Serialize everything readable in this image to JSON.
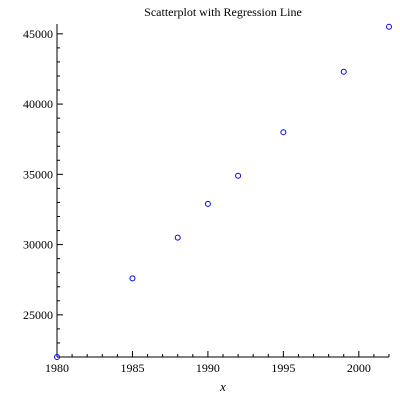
{
  "chart_data": {
    "type": "scatter",
    "title": "Scatterplot with Regression Line",
    "xlabel": "x",
    "ylabel": "",
    "xlim": [
      1980,
      2002
    ],
    "ylim": [
      22000,
      45700
    ],
    "xticks": [
      1980,
      1985,
      1990,
      1995,
      2000
    ],
    "yticks": [
      25000,
      30000,
      35000,
      40000,
      45000
    ],
    "x": [
      1980,
      1985,
      1988,
      1990,
      1992,
      1995,
      1999,
      2002
    ],
    "y": [
      22000,
      27600,
      30500,
      32900,
      34900,
      38000,
      42300,
      45500
    ],
    "grid": false,
    "marker_color": "#0000ff"
  }
}
